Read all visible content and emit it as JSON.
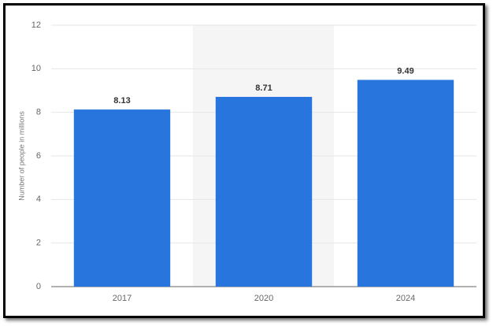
{
  "chart_data": {
    "type": "bar",
    "y_label": "Number of people in millions",
    "categories": [
      "2017",
      "2020",
      "2024"
    ],
    "values": [
      8.13,
      8.71,
      9.49
    ],
    "color": "#2876dd",
    "ylim": [
      0,
      12
    ],
    "yticks": [
      0,
      2,
      4,
      6,
      8,
      10,
      12
    ],
    "grid": true
  }
}
